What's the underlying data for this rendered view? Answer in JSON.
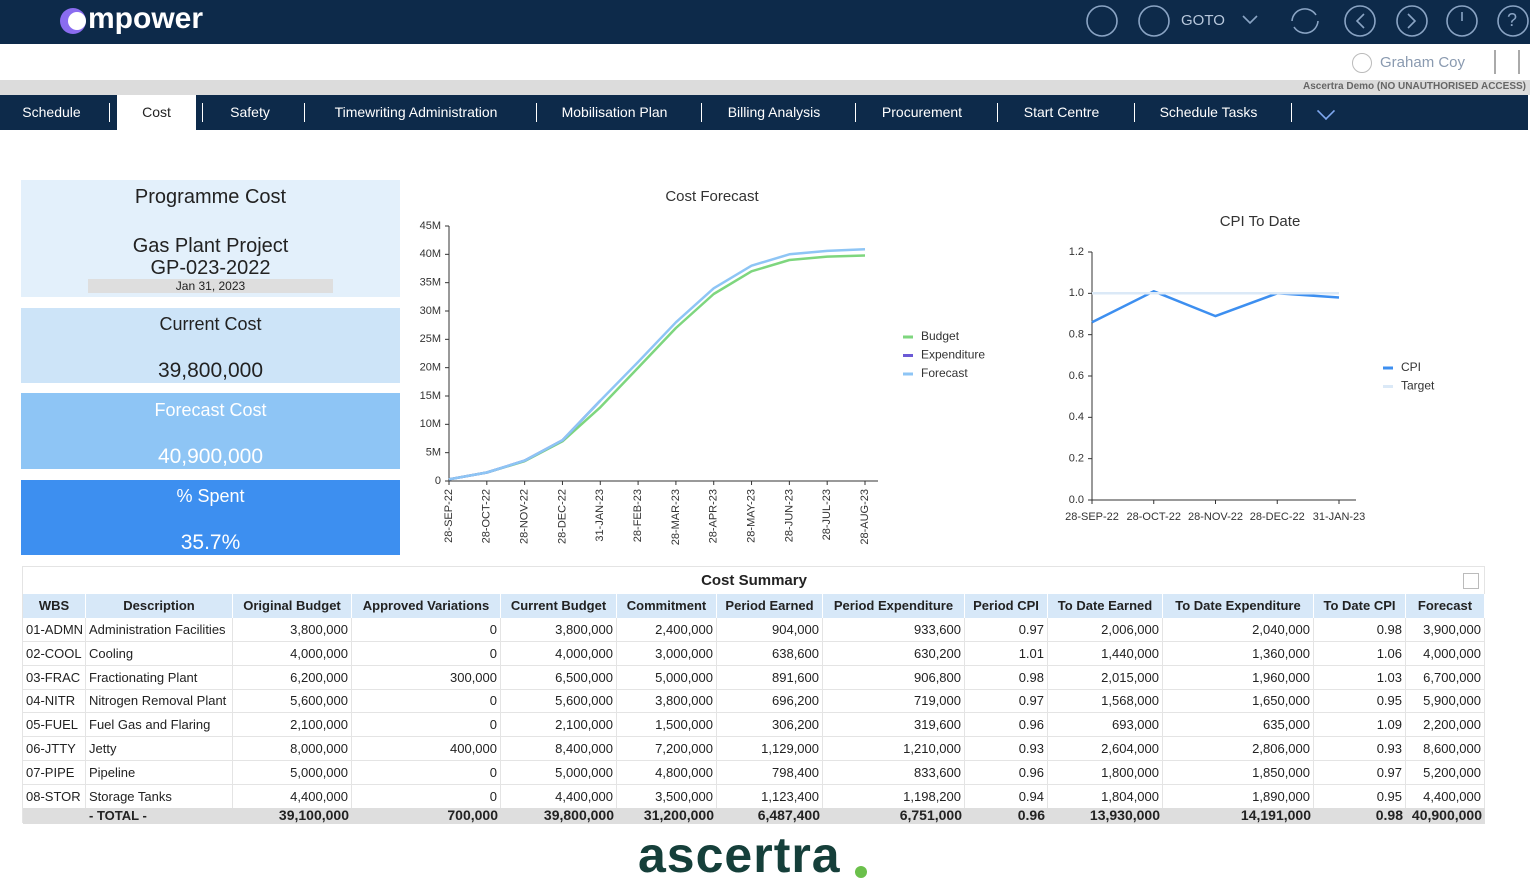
{
  "header": {
    "logo": "mpower",
    "goto": "GOTO",
    "user": "Graham Coy",
    "notice": "Ascertra Demo (NO UNAUTHORISED ACCESS)"
  },
  "tabs": [
    "Schedule",
    "Cost",
    "Safety",
    "Timewriting Administration",
    "Mobilisation Plan",
    "Billing Analysis",
    "Procurement",
    "Start Centre",
    "Schedule Tasks"
  ],
  "active_tab": 1,
  "cards": {
    "title": "Programme Cost",
    "project": "Gas Plant Project",
    "code": "GP-023-2022",
    "date": "Jan 31, 2023",
    "items": [
      {
        "label": "Current Cost",
        "value": "39,800,000"
      },
      {
        "label": "Forecast Cost",
        "value": "40,900,000"
      },
      {
        "label": "% Spent",
        "value": "35.7%"
      }
    ]
  },
  "chart_data": [
    {
      "type": "line",
      "title": "Cost Forecast",
      "categories": [
        "28-SEP-22",
        "28-OCT-22",
        "28-NOV-22",
        "28-DEC-22",
        "31-JAN-23",
        "28-FEB-23",
        "28-MAR-23",
        "28-APR-23",
        "28-MAY-23",
        "28-JUN-23",
        "28-JUL-23",
        "28-AUG-23"
      ],
      "series": [
        {
          "name": "Budget",
          "color": "#7ed67e",
          "values": [
            300000,
            1500000,
            3500000,
            7000000,
            13000000,
            20000000,
            27000000,
            33000000,
            37000000,
            39000000,
            39600000,
            39800000
          ]
        },
        {
          "name": "Expenditure",
          "color": "#6b5ad6",
          "values": [
            300000,
            1500000,
            3600000,
            7200000,
            14191000,
            null,
            null,
            null,
            null,
            null,
            null,
            null
          ]
        },
        {
          "name": "Forecast",
          "color": "#8ec5f5",
          "values": [
            300000,
            1500000,
            3600000,
            7200000,
            14191000,
            21000000,
            28000000,
            34000000,
            38000000,
            40000000,
            40600000,
            40900000
          ]
        }
      ],
      "ylim": [
        0,
        45000000
      ],
      "yticks": [
        0,
        {
          "value": 5000000,
          "label": "5M"
        },
        {
          "value": 10000000,
          "label": "10M"
        },
        {
          "value": 15000000,
          "label": "15M"
        },
        {
          "value": 20000000,
          "label": "20M"
        },
        {
          "value": 25000000,
          "label": "25M"
        },
        {
          "value": 30000000,
          "label": "30M"
        },
        {
          "value": 35000000,
          "label": "35M"
        },
        {
          "value": 40000000,
          "label": "40M"
        },
        {
          "value": 45000000,
          "label": "45M"
        }
      ],
      "grid": false,
      "legend": "right"
    },
    {
      "type": "line",
      "title": "CPI To Date",
      "categories": [
        "28-SEP-22",
        "28-OCT-22",
        "28-NOV-22",
        "28-DEC-22",
        "31-JAN-23"
      ],
      "series": [
        {
          "name": "CPI",
          "color": "#3d8ff0",
          "values": [
            0.86,
            1.01,
            0.89,
            1.0,
            0.98
          ]
        },
        {
          "name": "Target",
          "color": "#dbe9f7",
          "values": [
            1,
            1,
            1,
            1,
            1
          ]
        }
      ],
      "ylim": [
        0,
        1.2
      ],
      "yticks": [
        {
          "value": 0,
          "label": "0.0"
        },
        0.2,
        0.4,
        0.6,
        0.8,
        {
          "value": 1,
          "label": "1.0"
        },
        1.2
      ],
      "grid": false,
      "legend": "right"
    }
  ],
  "table": {
    "title": "Cost Summary",
    "columns": [
      "WBS",
      "Description",
      "Original Budget",
      "Approved Variations",
      "Current Budget",
      "Commitment",
      "Period Earned",
      "Period Expenditure",
      "Period CPI",
      "To Date Earned",
      "To Date Expenditure",
      "To Date CPI",
      "Forecast"
    ],
    "rows": [
      [
        "01-ADMN",
        "Administration Facilities",
        "3,800,000",
        "0",
        "3,800,000",
        "2,400,000",
        "904,000",
        "933,600",
        "0.97",
        "2,006,000",
        "2,040,000",
        "0.98",
        "3,900,000"
      ],
      [
        "02-COOL",
        "Cooling",
        "4,000,000",
        "0",
        "4,000,000",
        "3,000,000",
        "638,600",
        "630,200",
        "1.01",
        "1,440,000",
        "1,360,000",
        "1.06",
        "4,000,000"
      ],
      [
        "03-FRAC",
        "Fractionating Plant",
        "6,200,000",
        "300,000",
        "6,500,000",
        "5,000,000",
        "891,600",
        "906,800",
        "0.98",
        "2,015,000",
        "1,960,000",
        "1.03",
        "6,700,000"
      ],
      [
        "04-NITR",
        "Nitrogen Removal Plant",
        "5,600,000",
        "0",
        "5,600,000",
        "3,800,000",
        "696,200",
        "719,000",
        "0.97",
        "1,568,000",
        "1,650,000",
        "0.95",
        "5,900,000"
      ],
      [
        "05-FUEL",
        "Fuel Gas and Flaring",
        "2,100,000",
        "0",
        "2,100,000",
        "1,500,000",
        "306,200",
        "319,600",
        "0.96",
        "693,000",
        "635,000",
        "1.09",
        "2,200,000"
      ],
      [
        "06-JTTY",
        "Jetty",
        "8,000,000",
        "400,000",
        "8,400,000",
        "7,200,000",
        "1,129,000",
        "1,210,000",
        "0.93",
        "2,604,000",
        "2,806,000",
        "0.93",
        "8,600,000"
      ],
      [
        "07-PIPE",
        "Pipeline",
        "5,000,000",
        "0",
        "5,000,000",
        "4,800,000",
        "798,400",
        "833,600",
        "0.96",
        "1,800,000",
        "1,850,000",
        "0.97",
        "5,200,000"
      ],
      [
        "08-STOR",
        "Storage Tanks",
        "4,400,000",
        "0",
        "4,400,000",
        "3,500,000",
        "1,123,400",
        "1,198,200",
        "0.94",
        "1,804,000",
        "1,890,000",
        "0.95",
        "4,400,000"
      ]
    ],
    "total": {
      "label": "- TOTAL -",
      "values": [
        "39,100,000",
        "700,000",
        "39,800,000",
        "31,200,000",
        "6,487,400",
        "6,751,000",
        "0.96",
        "13,930,000",
        "14,191,000",
        "0.98",
        "40,900,000"
      ]
    }
  },
  "footer": {
    "logo": "ascertra"
  }
}
